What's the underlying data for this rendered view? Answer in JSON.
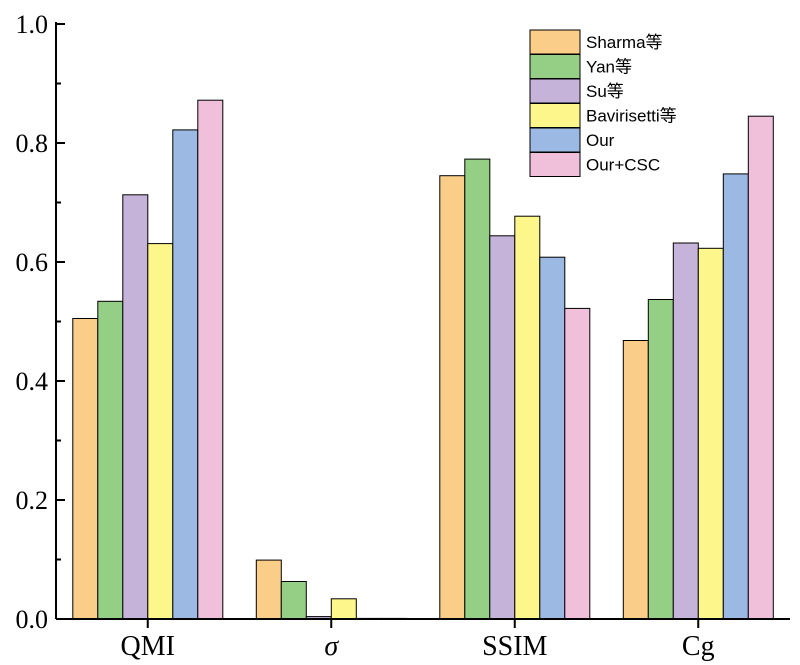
{
  "chart_data": {
    "type": "bar",
    "title": "",
    "xlabel": "",
    "ylabel": "",
    "ylim": [
      0,
      1.0
    ],
    "yticks": [
      "0.0",
      "0.2",
      "0.4",
      "0.6",
      "0.8",
      "1.0"
    ],
    "categories": [
      "QMI",
      "σ",
      "SSIM",
      "Cg"
    ],
    "grid": false,
    "legend_position": "top-right",
    "series": [
      {
        "name": "Sharma等",
        "color": "#FACD89",
        "values": [
          0.505,
          0.099,
          0.745,
          0.468
        ]
      },
      {
        "name": "Yan等",
        "color": "#95CF86",
        "values": [
          0.534,
          0.063,
          0.773,
          0.537
        ]
      },
      {
        "name": "Su等",
        "color": "#C6B3D9",
        "values": [
          0.713,
          0.004,
          0.644,
          0.632
        ]
      },
      {
        "name": "Bavirisetti等",
        "color": "#FDF68A",
        "values": [
          0.631,
          0.034,
          0.677,
          0.623
        ]
      },
      {
        "name": "Our",
        "color": "#9CB9E3",
        "values": [
          0.822,
          0.001,
          0.608,
          0.748
        ]
      },
      {
        "name": "Our+CSC",
        "color": "#F0C0DA",
        "values": [
          0.872,
          0.001,
          0.522,
          0.845
        ]
      }
    ]
  }
}
